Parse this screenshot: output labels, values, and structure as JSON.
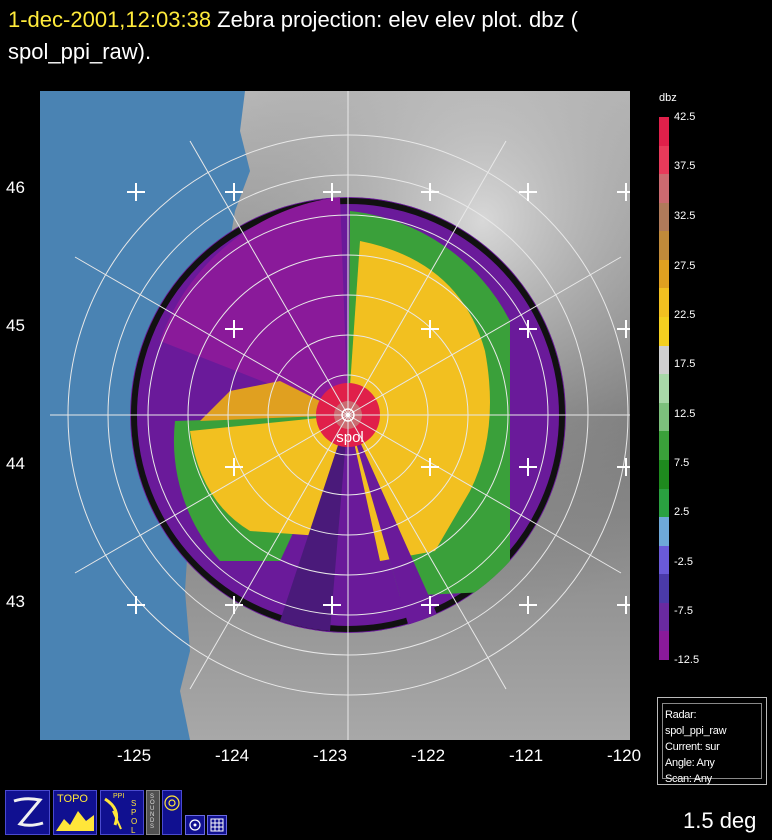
{
  "title": {
    "timestamp": "1-dec-2001,12:03:38",
    "text_line1": " Zebra projection: elev elev  plot.  dbz (",
    "text_line2": "spol_ppi_raw)."
  },
  "radar_label": "spol",
  "latitude_labels": [
    "46",
    "45",
    "44",
    "43"
  ],
  "longitude_labels": [
    "-125",
    "-124",
    "-123",
    "-122",
    "-121",
    "-120"
  ],
  "colorbar": {
    "unit": "dbz",
    "labels": [
      "42.5",
      "37.5",
      "32.5",
      "27.5",
      "22.5",
      "17.5",
      "12.5",
      "7.5",
      "2.5",
      "-2.5",
      "-7.5",
      "-12.5"
    ],
    "colors": [
      "#e0204a",
      "#e83a5a",
      "#cc6a70",
      "#b07a5a",
      "#c08a3a",
      "#e0a020",
      "#f2c020",
      "#f4d020",
      "#d0d0d0",
      "#a8d8a8",
      "#7cc07c",
      "#3aa03a",
      "#1e8a1e",
      "#2aa040",
      "#6ea8d8",
      "#6a5ad8",
      "#4a3aa8",
      "#6a2aa0",
      "#8a1a9a"
    ]
  },
  "info_box": {
    "radar": "Radar: spol_ppi_raw",
    "current": "Current: sur",
    "angle": "Angle: Any",
    "scan": "Scan: Any"
  },
  "elevation_label": "1.5 deg",
  "toolbar": {
    "topo_label": "TOPO",
    "ppi_label": "PPI",
    "spol_label": "SPOL",
    "sounds_label": "SOUNDS"
  },
  "colors": {
    "ocean": "#4a83b3",
    "title_timestamp": "#ffeb3b",
    "echo_purple": "#6a1a9a",
    "echo_yellow": "#f2c020",
    "echo_green": "#3aa03a",
    "echo_red": "#e0204a"
  }
}
